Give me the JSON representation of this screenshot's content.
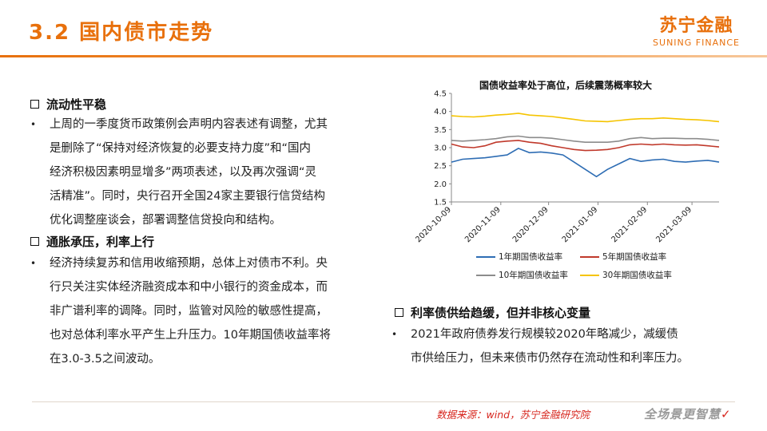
{
  "header": {
    "title": "3.2 国内债市走势",
    "logo_cn": "苏宁金融",
    "logo_en": "SUNING FINANCE"
  },
  "left": {
    "section1": {
      "heading": "流动性平稳",
      "lines": [
        "上周的一季度货币政策例会声明内容表述有调整，尤其",
        "是删除了“保持对经济恢复的必要支持力度”和“国内",
        "经济积极因素明显增多”两项表述，以及再次强调“灵",
        "活精准”。同时，央行召开全国24家主要银行信贷结构",
        "优化调整座谈会，部署调整信贷投向和结构。"
      ]
    },
    "section2": {
      "heading": "通胀承压，利率上行",
      "lines": [
        "经济持续复苏和信用收缩预期，总体上对债市不利。央",
        "行只关注实体经济融资成本和中小银行的资金成本，而",
        "非广谱利率的调降。同时，监管对风险的敏感性提高，",
        "也对总体利率水平产生上升压力。10年期国债收益率将",
        "在3.0-3.5之间波动。"
      ]
    }
  },
  "right": {
    "section3": {
      "heading": "利率债供给趋缓，但并非核心变量",
      "lines": [
        "2021年政府债券发行规模较2020年略减少，减缓债",
        "市供给压力，但未来债市仍然存在流动性和利率压力。"
      ]
    }
  },
  "chart_data": {
    "type": "line",
    "title": "国债收益率处于高位，后续震荡概率较大",
    "xlabel": "",
    "ylabel": "",
    "ylim": [
      1.5,
      4.5
    ],
    "yticks": [
      "1.5",
      "2.0",
      "2.5",
      "3.0",
      "3.5",
      "4.0",
      "4.5"
    ],
    "x_ticks": [
      "2020-10-09",
      "2020-11-09",
      "2020-12-09",
      "2021-01-09",
      "2021-02-09",
      "2021-03-09"
    ],
    "x": [
      "2020-10-09",
      "2020-10-16",
      "2020-10-23",
      "2020-10-30",
      "2020-11-06",
      "2020-11-13",
      "2020-11-20",
      "2020-11-27",
      "2020-12-04",
      "2020-12-11",
      "2020-12-18",
      "2020-12-25",
      "2021-01-01",
      "2021-01-08",
      "2021-01-15",
      "2021-01-22",
      "2021-01-29",
      "2021-02-05",
      "2021-02-12",
      "2021-02-19",
      "2021-02-26",
      "2021-03-05",
      "2021-03-12",
      "2021-03-19",
      "2021-03-26"
    ],
    "grid": false,
    "legend_position": "bottom",
    "series": [
      {
        "name": "1年期国债收益率",
        "color": "#2e6db4",
        "values": [
          2.6,
          2.68,
          2.7,
          2.72,
          2.76,
          2.8,
          2.98,
          2.86,
          2.88,
          2.85,
          2.8,
          2.6,
          2.4,
          2.2,
          2.4,
          2.55,
          2.7,
          2.62,
          2.66,
          2.68,
          2.62,
          2.6,
          2.63,
          2.65,
          2.6
        ]
      },
      {
        "name": "5年期国债收益率",
        "color": "#c0392b",
        "values": [
          3.1,
          3.02,
          3.0,
          3.05,
          3.15,
          3.18,
          3.2,
          3.15,
          3.12,
          3.05,
          3.0,
          2.95,
          2.92,
          2.93,
          2.95,
          3.0,
          3.08,
          3.1,
          3.08,
          3.1,
          3.08,
          3.07,
          3.08,
          3.05,
          3.02
        ]
      },
      {
        "name": "10年期国债收益率",
        "color": "#8c8c8c",
        "values": [
          3.2,
          3.18,
          3.2,
          3.22,
          3.25,
          3.3,
          3.32,
          3.28,
          3.28,
          3.26,
          3.22,
          3.18,
          3.15,
          3.15,
          3.15,
          3.18,
          3.25,
          3.28,
          3.25,
          3.26,
          3.26,
          3.25,
          3.25,
          3.23,
          3.2
        ]
      },
      {
        "name": "30年期国债收益率",
        "color": "#f5c400",
        "values": [
          3.88,
          3.86,
          3.85,
          3.87,
          3.9,
          3.92,
          3.95,
          3.9,
          3.88,
          3.86,
          3.82,
          3.78,
          3.74,
          3.73,
          3.72,
          3.75,
          3.78,
          3.8,
          3.8,
          3.82,
          3.8,
          3.78,
          3.77,
          3.75,
          3.72
        ]
      }
    ]
  },
  "footer": {
    "source": "数据来源：wind，苏宁金融研究院",
    "slogan": "全场景更智慧"
  }
}
